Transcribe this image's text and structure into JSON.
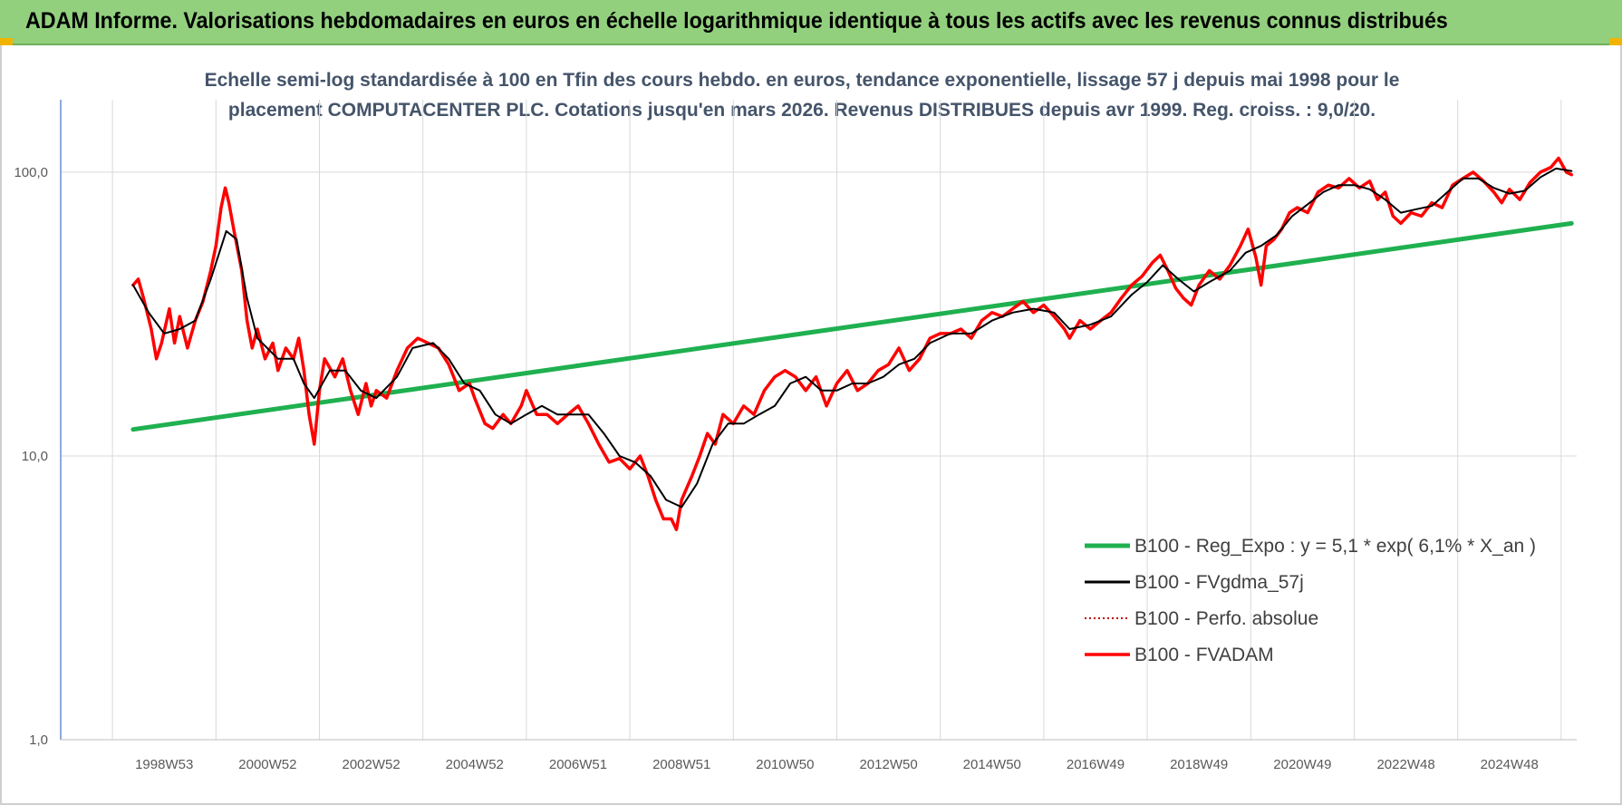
{
  "header": {
    "title": "ADAM Informe. Valorisations hebdomadaires en euros en échelle logarithmique identique à tous les actifs avec les revenus connus distribués"
  },
  "chart_data": {
    "type": "line",
    "title_line1": "Echelle semi-log standardisée à 100 en Tfin des cours hebdo. en euros, tendance exponentielle, lissage 57 j depuis mai 1998 pour le",
    "title_line2": "placement COMPUTACENTER PLC. Cotations jusqu'en mars 2026.  Revenus DISTRIBUES depuis avr 1999. Reg. croiss. : 9,0/20.",
    "y_scale": "log",
    "ylim": [
      1,
      180
    ],
    "y_ticks": [
      1,
      10,
      100
    ],
    "y_tick_labels": [
      "1,0",
      "10,0",
      "100,0"
    ],
    "x_tick_labels": [
      "1998W53",
      "2000W52",
      "2002W52",
      "2004W52",
      "2006W51",
      "2008W51",
      "2010W50",
      "2012W50",
      "2014W50",
      "2016W49",
      "2018W49",
      "2020W49",
      "2022W48",
      "2024W48"
    ],
    "x_tick_years": [
      1999.0,
      2001.0,
      2003.0,
      2005.0,
      2007.0,
      2009.0,
      2011.0,
      2013.0,
      2015.0,
      2017.0,
      2019.0,
      2021.0,
      2023.0,
      2025.0
    ],
    "xlim": [
      1997.0,
      2026.3
    ],
    "grid": true,
    "legend_position": "bottom-right",
    "series": [
      {
        "name": "B100 - Reg_Expo : y = 5,1 * exp( 6,1% *  X_an )",
        "color": "#1fb050",
        "style": "solid",
        "width": 5,
        "points": [
          [
            1998.4,
            12.4
          ],
          [
            2026.2,
            66.0
          ]
        ]
      },
      {
        "name": "B100 - FVgdma_57j",
        "color": "#000000",
        "style": "solid",
        "width": 2,
        "points": [
          [
            1998.4,
            40
          ],
          [
            1998.7,
            32
          ],
          [
            1999.0,
            27
          ],
          [
            1999.3,
            28
          ],
          [
            1999.6,
            30
          ],
          [
            1999.9,
            42
          ],
          [
            2000.2,
            62
          ],
          [
            2000.4,
            58
          ],
          [
            2000.6,
            36
          ],
          [
            2000.8,
            26
          ],
          [
            2001.2,
            22
          ],
          [
            2001.5,
            22
          ],
          [
            2001.7,
            18
          ],
          [
            2001.9,
            16
          ],
          [
            2002.2,
            20
          ],
          [
            2002.5,
            20
          ],
          [
            2002.8,
            17
          ],
          [
            2003.1,
            16
          ],
          [
            2003.5,
            19
          ],
          [
            2003.8,
            24
          ],
          [
            2004.2,
            25
          ],
          [
            2004.5,
            22
          ],
          [
            2004.8,
            18
          ],
          [
            2005.1,
            17
          ],
          [
            2005.4,
            14
          ],
          [
            2005.7,
            13
          ],
          [
            2006.0,
            14
          ],
          [
            2006.3,
            15
          ],
          [
            2006.6,
            14
          ],
          [
            2006.9,
            14
          ],
          [
            2007.2,
            14
          ],
          [
            2007.5,
            12
          ],
          [
            2007.8,
            10
          ],
          [
            2008.1,
            9.5
          ],
          [
            2008.4,
            8.5
          ],
          [
            2008.7,
            7.0
          ],
          [
            2009.0,
            6.6
          ],
          [
            2009.3,
            8.0
          ],
          [
            2009.6,
            11
          ],
          [
            2009.9,
            13
          ],
          [
            2010.2,
            13
          ],
          [
            2010.5,
            14
          ],
          [
            2010.8,
            15
          ],
          [
            2011.1,
            18
          ],
          [
            2011.4,
            19
          ],
          [
            2011.7,
            17
          ],
          [
            2012.0,
            17
          ],
          [
            2012.3,
            18
          ],
          [
            2012.6,
            18
          ],
          [
            2012.9,
            19
          ],
          [
            2013.2,
            21
          ],
          [
            2013.5,
            22
          ],
          [
            2013.8,
            25
          ],
          [
            2014.2,
            27
          ],
          [
            2014.6,
            27
          ],
          [
            2015.0,
            30
          ],
          [
            2015.4,
            32
          ],
          [
            2015.8,
            33
          ],
          [
            2016.2,
            32
          ],
          [
            2016.5,
            28
          ],
          [
            2016.9,
            29
          ],
          [
            2017.3,
            31
          ],
          [
            2017.7,
            37
          ],
          [
            2018.0,
            41
          ],
          [
            2018.3,
            47
          ],
          [
            2018.6,
            42
          ],
          [
            2018.9,
            38
          ],
          [
            2019.2,
            41
          ],
          [
            2019.6,
            45
          ],
          [
            2019.9,
            52
          ],
          [
            2020.2,
            55
          ],
          [
            2020.5,
            60
          ],
          [
            2020.8,
            70
          ],
          [
            2021.1,
            77
          ],
          [
            2021.4,
            85
          ],
          [
            2021.7,
            90
          ],
          [
            2022.0,
            90
          ],
          [
            2022.3,
            87
          ],
          [
            2022.6,
            80
          ],
          [
            2022.9,
            72
          ],
          [
            2023.2,
            74
          ],
          [
            2023.5,
            76
          ],
          [
            2023.8,
            85
          ],
          [
            2024.1,
            95
          ],
          [
            2024.4,
            95
          ],
          [
            2024.7,
            88
          ],
          [
            2025.0,
            84
          ],
          [
            2025.3,
            86
          ],
          [
            2025.6,
            96
          ],
          [
            2025.9,
            103
          ],
          [
            2026.2,
            101
          ]
        ]
      },
      {
        "name": "B100 - Perfo. absolue",
        "color": "#c00000",
        "style": "dotted",
        "width": 1.5,
        "points": []
      },
      {
        "name": "B100 - FVADAM",
        "color": "#ff0000",
        "style": "solid",
        "width": 3.5,
        "points": [
          [
            1998.4,
            40
          ],
          [
            1998.5,
            42
          ],
          [
            1998.6,
            36
          ],
          [
            1998.75,
            28
          ],
          [
            1998.85,
            22
          ],
          [
            1998.95,
            25
          ],
          [
            1999.1,
            33
          ],
          [
            1999.2,
            25
          ],
          [
            1999.3,
            31
          ],
          [
            1999.45,
            24
          ],
          [
            1999.6,
            30
          ],
          [
            1999.75,
            35
          ],
          [
            1999.9,
            45
          ],
          [
            2000.0,
            55
          ],
          [
            2000.1,
            75
          ],
          [
            2000.18,
            88
          ],
          [
            2000.25,
            78
          ],
          [
            2000.35,
            62
          ],
          [
            2000.5,
            45
          ],
          [
            2000.6,
            30
          ],
          [
            2000.7,
            24
          ],
          [
            2000.8,
            28
          ],
          [
            2000.95,
            22
          ],
          [
            2001.1,
            25
          ],
          [
            2001.2,
            20
          ],
          [
            2001.35,
            24
          ],
          [
            2001.5,
            22
          ],
          [
            2001.6,
            26
          ],
          [
            2001.7,
            20
          ],
          [
            2001.8,
            14
          ],
          [
            2001.9,
            11
          ],
          [
            2002.0,
            17
          ],
          [
            2002.1,
            22
          ],
          [
            2002.3,
            19
          ],
          [
            2002.45,
            22
          ],
          [
            2002.6,
            17
          ],
          [
            2002.75,
            14
          ],
          [
            2002.9,
            18
          ],
          [
            2003.0,
            15
          ],
          [
            2003.1,
            17
          ],
          [
            2003.3,
            16
          ],
          [
            2003.5,
            20
          ],
          [
            2003.7,
            24
          ],
          [
            2003.9,
            26
          ],
          [
            2004.1,
            25
          ],
          [
            2004.3,
            24
          ],
          [
            2004.5,
            21
          ],
          [
            2004.7,
            17
          ],
          [
            2004.9,
            18
          ],
          [
            2005.0,
            16
          ],
          [
            2005.2,
            13
          ],
          [
            2005.35,
            12.5
          ],
          [
            2005.55,
            14
          ],
          [
            2005.7,
            13
          ],
          [
            2005.9,
            15
          ],
          [
            2006.0,
            17
          ],
          [
            2006.2,
            14
          ],
          [
            2006.4,
            14
          ],
          [
            2006.6,
            13
          ],
          [
            2006.8,
            14
          ],
          [
            2007.0,
            15
          ],
          [
            2007.2,
            13
          ],
          [
            2007.4,
            11
          ],
          [
            2007.6,
            9.5
          ],
          [
            2007.8,
            9.8
          ],
          [
            2008.0,
            9.0
          ],
          [
            2008.2,
            10
          ],
          [
            2008.35,
            8.5
          ],
          [
            2008.5,
            7.0
          ],
          [
            2008.65,
            6.0
          ],
          [
            2008.8,
            6.0
          ],
          [
            2008.9,
            5.5
          ],
          [
            2009.0,
            7.0
          ],
          [
            2009.2,
            8.5
          ],
          [
            2009.35,
            10
          ],
          [
            2009.5,
            12
          ],
          [
            2009.65,
            11
          ],
          [
            2009.8,
            14
          ],
          [
            2010.0,
            13
          ],
          [
            2010.2,
            15
          ],
          [
            2010.4,
            14
          ],
          [
            2010.6,
            17
          ],
          [
            2010.8,
            19
          ],
          [
            2011.0,
            20
          ],
          [
            2011.2,
            19
          ],
          [
            2011.4,
            17
          ],
          [
            2011.6,
            19
          ],
          [
            2011.8,
            15
          ],
          [
            2012.0,
            18
          ],
          [
            2012.2,
            20
          ],
          [
            2012.4,
            17
          ],
          [
            2012.6,
            18
          ],
          [
            2012.8,
            20
          ],
          [
            2013.0,
            21
          ],
          [
            2013.2,
            24
          ],
          [
            2013.4,
            20
          ],
          [
            2013.6,
            22
          ],
          [
            2013.8,
            26
          ],
          [
            2014.0,
            27
          ],
          [
            2014.2,
            27
          ],
          [
            2014.4,
            28
          ],
          [
            2014.6,
            26
          ],
          [
            2014.8,
            30
          ],
          [
            2015.0,
            32
          ],
          [
            2015.2,
            31
          ],
          [
            2015.4,
            33
          ],
          [
            2015.6,
            35
          ],
          [
            2015.8,
            32
          ],
          [
            2016.0,
            34
          ],
          [
            2016.2,
            31
          ],
          [
            2016.4,
            28
          ],
          [
            2016.5,
            26
          ],
          [
            2016.7,
            30
          ],
          [
            2016.9,
            28
          ],
          [
            2017.1,
            30
          ],
          [
            2017.3,
            32
          ],
          [
            2017.5,
            36
          ],
          [
            2017.7,
            40
          ],
          [
            2017.9,
            43
          ],
          [
            2018.1,
            48
          ],
          [
            2018.25,
            51
          ],
          [
            2018.4,
            45
          ],
          [
            2018.55,
            39
          ],
          [
            2018.7,
            36
          ],
          [
            2018.85,
            34
          ],
          [
            2019.0,
            40
          ],
          [
            2019.2,
            45
          ],
          [
            2019.4,
            42
          ],
          [
            2019.6,
            47
          ],
          [
            2019.8,
            55
          ],
          [
            2019.95,
            63
          ],
          [
            2020.1,
            50
          ],
          [
            2020.2,
            40
          ],
          [
            2020.3,
            55
          ],
          [
            2020.45,
            58
          ],
          [
            2020.6,
            63
          ],
          [
            2020.75,
            72
          ],
          [
            2020.9,
            75
          ],
          [
            2021.1,
            72
          ],
          [
            2021.3,
            85
          ],
          [
            2021.5,
            90
          ],
          [
            2021.7,
            88
          ],
          [
            2021.9,
            95
          ],
          [
            2022.1,
            88
          ],
          [
            2022.3,
            93
          ],
          [
            2022.45,
            80
          ],
          [
            2022.6,
            85
          ],
          [
            2022.75,
            70
          ],
          [
            2022.9,
            66
          ],
          [
            2023.1,
            72
          ],
          [
            2023.3,
            70
          ],
          [
            2023.5,
            78
          ],
          [
            2023.7,
            75
          ],
          [
            2023.9,
            90
          ],
          [
            2024.1,
            95
          ],
          [
            2024.3,
            100
          ],
          [
            2024.5,
            93
          ],
          [
            2024.7,
            85
          ],
          [
            2024.85,
            78
          ],
          [
            2025.0,
            87
          ],
          [
            2025.2,
            80
          ],
          [
            2025.4,
            92
          ],
          [
            2025.6,
            100
          ],
          [
            2025.8,
            104
          ],
          [
            2025.95,
            112
          ],
          [
            2026.1,
            100
          ],
          [
            2026.2,
            98
          ]
        ]
      }
    ]
  }
}
